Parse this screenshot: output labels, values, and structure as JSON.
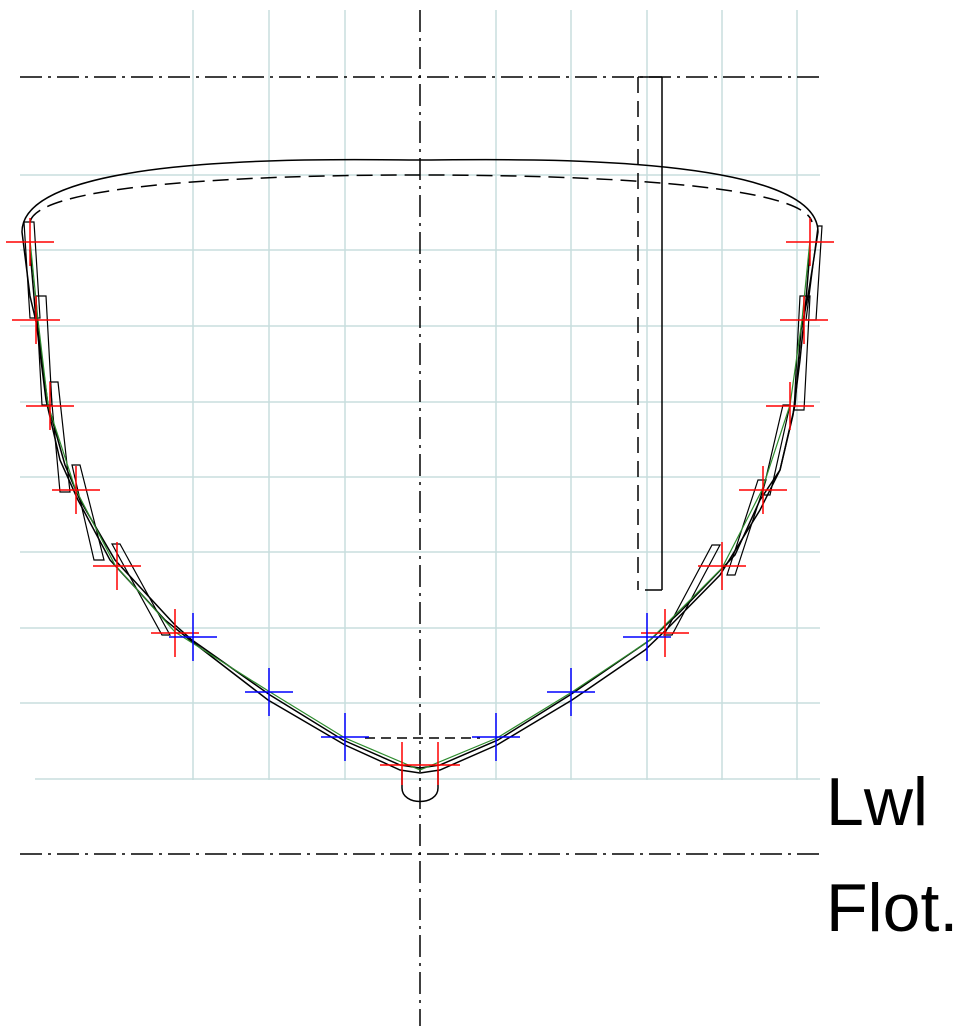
{
  "labels": {
    "lwl": "Lwl",
    "flot": "Flot."
  },
  "colors": {
    "background": "#ffffff",
    "grid": "#c8dede",
    "outline": "#000000",
    "red_marker": "#ff0000",
    "blue_marker": "#0000ff",
    "green_fair_line": "#2e8b2e"
  },
  "icons": {
    "red_marker": "red-cross-marker",
    "blue_marker": "blue-cross-marker"
  }
}
